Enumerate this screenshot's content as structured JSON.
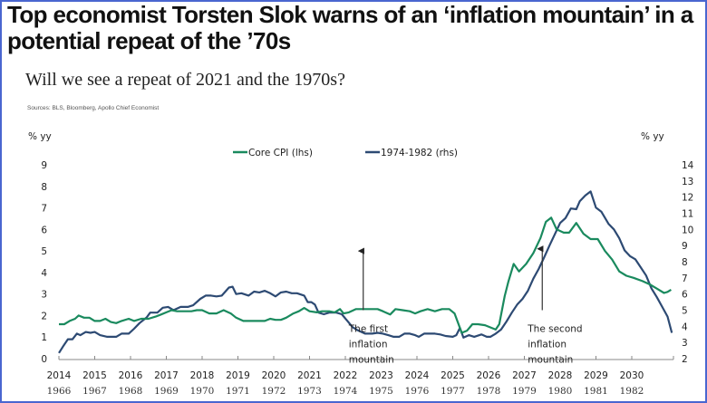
{
  "article": {
    "headline": "Top economist Torsten Slok warns of an ‘inflation mountain’ in a potential repeat of the ’70s"
  },
  "chart_data": {
    "type": "line",
    "title": "Will we see a repeat of 2021 and the 1970s?",
    "source": "Sources: BLS, Bloomberg, Apollo Chief Economist",
    "y_left_label": "% yy",
    "y_right_label": "% yy",
    "y_left_range": [
      0,
      9
    ],
    "y_right_range": [
      2,
      14
    ],
    "y_left_ticks": [
      "0",
      "1",
      "2",
      "3",
      "4",
      "5",
      "6",
      "7",
      "8",
      "9"
    ],
    "y_right_ticks": [
      "2",
      "3",
      "4",
      "5",
      "6",
      "7",
      "8",
      "9",
      "10",
      "11",
      "12",
      "13",
      "14"
    ],
    "x_range": [
      2014,
      2031.15
    ],
    "x_ticks_primary": [
      "2014",
      "2015",
      "2016",
      "2017",
      "2018",
      "2019",
      "2020",
      "2021",
      "2022",
      "2023",
      "2024",
      "2025",
      "2026",
      "2027",
      "2028",
      "2029",
      "2030"
    ],
    "x_ticks_secondary": [
      "1966",
      "1967",
      "1968",
      "1969",
      "1970",
      "1971",
      "1972",
      "1973",
      "1974",
      "1975",
      "1976",
      "1977",
      "1978",
      "1979",
      "1980",
      "1981",
      "1982"
    ],
    "grid": false,
    "legend_position": "top-center",
    "colors": {
      "core_cpi": "#1a8a5e",
      "seventies": "#2d4a73"
    },
    "series": [
      {
        "name": "Core CPI (lhs)",
        "axis": "left",
        "points": [
          [
            2014.0,
            1.6
          ],
          [
            2014.15,
            1.6
          ],
          [
            2014.3,
            1.75
          ],
          [
            2014.45,
            1.85
          ],
          [
            2014.55,
            2.0
          ],
          [
            2014.7,
            1.9
          ],
          [
            2014.85,
            1.9
          ],
          [
            2015.0,
            1.75
          ],
          [
            2015.15,
            1.75
          ],
          [
            2015.3,
            1.85
          ],
          [
            2015.45,
            1.7
          ],
          [
            2015.6,
            1.65
          ],
          [
            2015.75,
            1.75
          ],
          [
            2015.95,
            1.85
          ],
          [
            2016.1,
            1.75
          ],
          [
            2016.3,
            1.85
          ],
          [
            2016.5,
            1.85
          ],
          [
            2016.7,
            1.95
          ],
          [
            2016.85,
            2.05
          ],
          [
            2017.0,
            2.15
          ],
          [
            2017.15,
            2.25
          ],
          [
            2017.3,
            2.2
          ],
          [
            2017.5,
            2.2
          ],
          [
            2017.7,
            2.2
          ],
          [
            2017.85,
            2.25
          ],
          [
            2018.0,
            2.25
          ],
          [
            2018.2,
            2.1
          ],
          [
            2018.4,
            2.1
          ],
          [
            2018.6,
            2.25
          ],
          [
            2018.8,
            2.1
          ],
          [
            2018.95,
            1.9
          ],
          [
            2019.15,
            1.75
          ],
          [
            2019.35,
            1.75
          ],
          [
            2019.55,
            1.75
          ],
          [
            2019.75,
            1.75
          ],
          [
            2019.9,
            1.85
          ],
          [
            2020.05,
            1.8
          ],
          [
            2020.2,
            1.8
          ],
          [
            2020.35,
            1.9
          ],
          [
            2020.55,
            2.1
          ],
          [
            2020.7,
            2.2
          ],
          [
            2020.85,
            2.35
          ],
          [
            2021.0,
            2.2
          ],
          [
            2021.2,
            2.15
          ],
          [
            2021.35,
            2.2
          ],
          [
            2021.55,
            2.2
          ],
          [
            2021.7,
            2.15
          ],
          [
            2021.85,
            2.3
          ],
          [
            2021.95,
            2.1
          ],
          [
            2022.1,
            2.15
          ],
          [
            2022.3,
            2.3
          ],
          [
            2022.5,
            2.3
          ],
          [
            2022.7,
            2.3
          ],
          [
            2022.9,
            2.3
          ],
          [
            2023.05,
            2.2
          ],
          [
            2023.25,
            2.05
          ],
          [
            2023.4,
            2.3
          ],
          [
            2023.6,
            2.25
          ],
          [
            2023.8,
            2.2
          ],
          [
            2023.95,
            2.1
          ],
          [
            2024.1,
            2.2
          ],
          [
            2024.3,
            2.3
          ],
          [
            2024.5,
            2.2
          ],
          [
            2024.7,
            2.3
          ],
          [
            2024.9,
            2.3
          ],
          [
            2025.05,
            2.1
          ],
          [
            2025.25,
            1.2
          ],
          [
            2025.4,
            1.3
          ],
          [
            2025.55,
            1.6
          ],
          [
            2025.7,
            1.6
          ],
          [
            2025.9,
            1.55
          ],
          [
            2026.05,
            1.45
          ],
          [
            2026.2,
            1.35
          ],
          [
            2026.3,
            1.6
          ],
          [
            2026.45,
            2.9
          ],
          [
            2026.55,
            3.55
          ],
          [
            2026.7,
            4.4
          ],
          [
            2026.85,
            4.05
          ],
          [
            2027.05,
            4.4
          ],
          [
            2027.25,
            4.9
          ],
          [
            2027.45,
            5.6
          ],
          [
            2027.6,
            6.35
          ],
          [
            2027.75,
            6.55
          ],
          [
            2027.9,
            6.0
          ],
          [
            2028.1,
            5.85
          ],
          [
            2028.25,
            5.85
          ],
          [
            2028.45,
            6.3
          ],
          [
            2028.65,
            5.8
          ],
          [
            2028.85,
            5.55
          ],
          [
            2029.05,
            5.55
          ],
          [
            2029.25,
            5.0
          ],
          [
            2029.45,
            4.6
          ],
          [
            2029.65,
            4.05
          ],
          [
            2029.85,
            3.85
          ],
          [
            2030.05,
            3.75
          ],
          [
            2030.3,
            3.6
          ],
          [
            2030.5,
            3.45
          ],
          [
            2030.7,
            3.25
          ],
          [
            2030.9,
            3.05
          ],
          [
            2031.0,
            3.1
          ],
          [
            2031.1,
            3.2
          ]
        ]
      },
      {
        "name": "1974-1982 (rhs)",
        "axis": "right",
        "points": [
          [
            2014.0,
            2.35
          ],
          [
            2014.13,
            2.8
          ],
          [
            2014.25,
            3.2
          ],
          [
            2014.38,
            3.2
          ],
          [
            2014.5,
            3.55
          ],
          [
            2014.6,
            3.45
          ],
          [
            2014.75,
            3.65
          ],
          [
            2014.88,
            3.6
          ],
          [
            2015.0,
            3.65
          ],
          [
            2015.15,
            3.45
          ],
          [
            2015.35,
            3.35
          ],
          [
            2015.6,
            3.35
          ],
          [
            2015.75,
            3.55
          ],
          [
            2015.95,
            3.55
          ],
          [
            2016.1,
            3.85
          ],
          [
            2016.25,
            4.2
          ],
          [
            2016.45,
            4.55
          ],
          [
            2016.55,
            4.85
          ],
          [
            2016.75,
            4.85
          ],
          [
            2016.9,
            5.15
          ],
          [
            2017.05,
            5.2
          ],
          [
            2017.2,
            5.0
          ],
          [
            2017.4,
            5.2
          ],
          [
            2017.6,
            5.2
          ],
          [
            2017.75,
            5.3
          ],
          [
            2017.95,
            5.7
          ],
          [
            2018.1,
            5.9
          ],
          [
            2018.25,
            5.9
          ],
          [
            2018.4,
            5.85
          ],
          [
            2018.55,
            5.9
          ],
          [
            2018.75,
            6.4
          ],
          [
            2018.85,
            6.45
          ],
          [
            2018.95,
            6.0
          ],
          [
            2019.1,
            6.05
          ],
          [
            2019.3,
            5.9
          ],
          [
            2019.45,
            6.15
          ],
          [
            2019.6,
            6.1
          ],
          [
            2019.75,
            6.2
          ],
          [
            2019.9,
            6.05
          ],
          [
            2020.05,
            5.85
          ],
          [
            2020.2,
            6.1
          ],
          [
            2020.35,
            6.15
          ],
          [
            2020.5,
            6.05
          ],
          [
            2020.65,
            6.05
          ],
          [
            2020.85,
            5.9
          ],
          [
            2020.95,
            5.5
          ],
          [
            2021.05,
            5.5
          ],
          [
            2021.15,
            5.35
          ],
          [
            2021.25,
            4.85
          ],
          [
            2021.4,
            4.75
          ],
          [
            2021.55,
            4.85
          ],
          [
            2021.75,
            4.85
          ],
          [
            2021.9,
            4.75
          ],
          [
            2022.05,
            4.35
          ],
          [
            2022.2,
            3.95
          ],
          [
            2022.35,
            3.75
          ],
          [
            2022.55,
            3.55
          ],
          [
            2022.75,
            3.55
          ],
          [
            2022.9,
            3.6
          ],
          [
            2023.05,
            3.55
          ],
          [
            2023.2,
            3.45
          ],
          [
            2023.35,
            3.35
          ],
          [
            2023.5,
            3.35
          ],
          [
            2023.65,
            3.55
          ],
          [
            2023.8,
            3.55
          ],
          [
            2023.95,
            3.45
          ],
          [
            2024.05,
            3.35
          ],
          [
            2024.2,
            3.55
          ],
          [
            2024.35,
            3.55
          ],
          [
            2024.5,
            3.55
          ],
          [
            2024.65,
            3.5
          ],
          [
            2024.8,
            3.4
          ],
          [
            2025.0,
            3.35
          ],
          [
            2025.1,
            3.45
          ],
          [
            2025.2,
            3.9
          ],
          [
            2025.3,
            3.3
          ],
          [
            2025.45,
            3.45
          ],
          [
            2025.6,
            3.35
          ],
          [
            2025.8,
            3.5
          ],
          [
            2025.95,
            3.35
          ],
          [
            2026.05,
            3.35
          ],
          [
            2026.2,
            3.55
          ],
          [
            2026.35,
            3.8
          ],
          [
            2026.5,
            4.3
          ],
          [
            2026.65,
            4.85
          ],
          [
            2026.8,
            5.35
          ],
          [
            2026.95,
            5.7
          ],
          [
            2027.1,
            6.2
          ],
          [
            2027.25,
            6.95
          ],
          [
            2027.4,
            7.55
          ],
          [
            2027.55,
            8.25
          ],
          [
            2027.7,
            9.0
          ],
          [
            2027.85,
            9.7
          ],
          [
            2028.0,
            10.4
          ],
          [
            2028.15,
            10.7
          ],
          [
            2028.3,
            11.3
          ],
          [
            2028.45,
            11.25
          ],
          [
            2028.55,
            11.75
          ],
          [
            2028.7,
            12.1
          ],
          [
            2028.85,
            12.35
          ],
          [
            2029.0,
            11.35
          ],
          [
            2029.15,
            11.1
          ],
          [
            2029.35,
            10.35
          ],
          [
            2029.5,
            10.0
          ],
          [
            2029.65,
            9.45
          ],
          [
            2029.8,
            8.7
          ],
          [
            2029.95,
            8.35
          ],
          [
            2030.1,
            8.15
          ],
          [
            2030.25,
            7.65
          ],
          [
            2030.4,
            7.15
          ],
          [
            2030.55,
            6.35
          ],
          [
            2030.7,
            5.8
          ],
          [
            2030.85,
            5.2
          ],
          [
            2031.0,
            4.6
          ],
          [
            2031.12,
            3.6
          ]
        ]
      }
    ],
    "annotations": [
      {
        "lines": [
          "The first",
          "inflation",
          "mountain"
        ],
        "arrow_x": 2022.5,
        "arrow_from_left": 2.25,
        "arrow_to_left": 5.0
      },
      {
        "lines": [
          "The second",
          "inflation",
          "mountain"
        ],
        "arrow_x": 2027.5,
        "arrow_from_left": 2.25,
        "arrow_to_left": 5.1
      }
    ]
  }
}
